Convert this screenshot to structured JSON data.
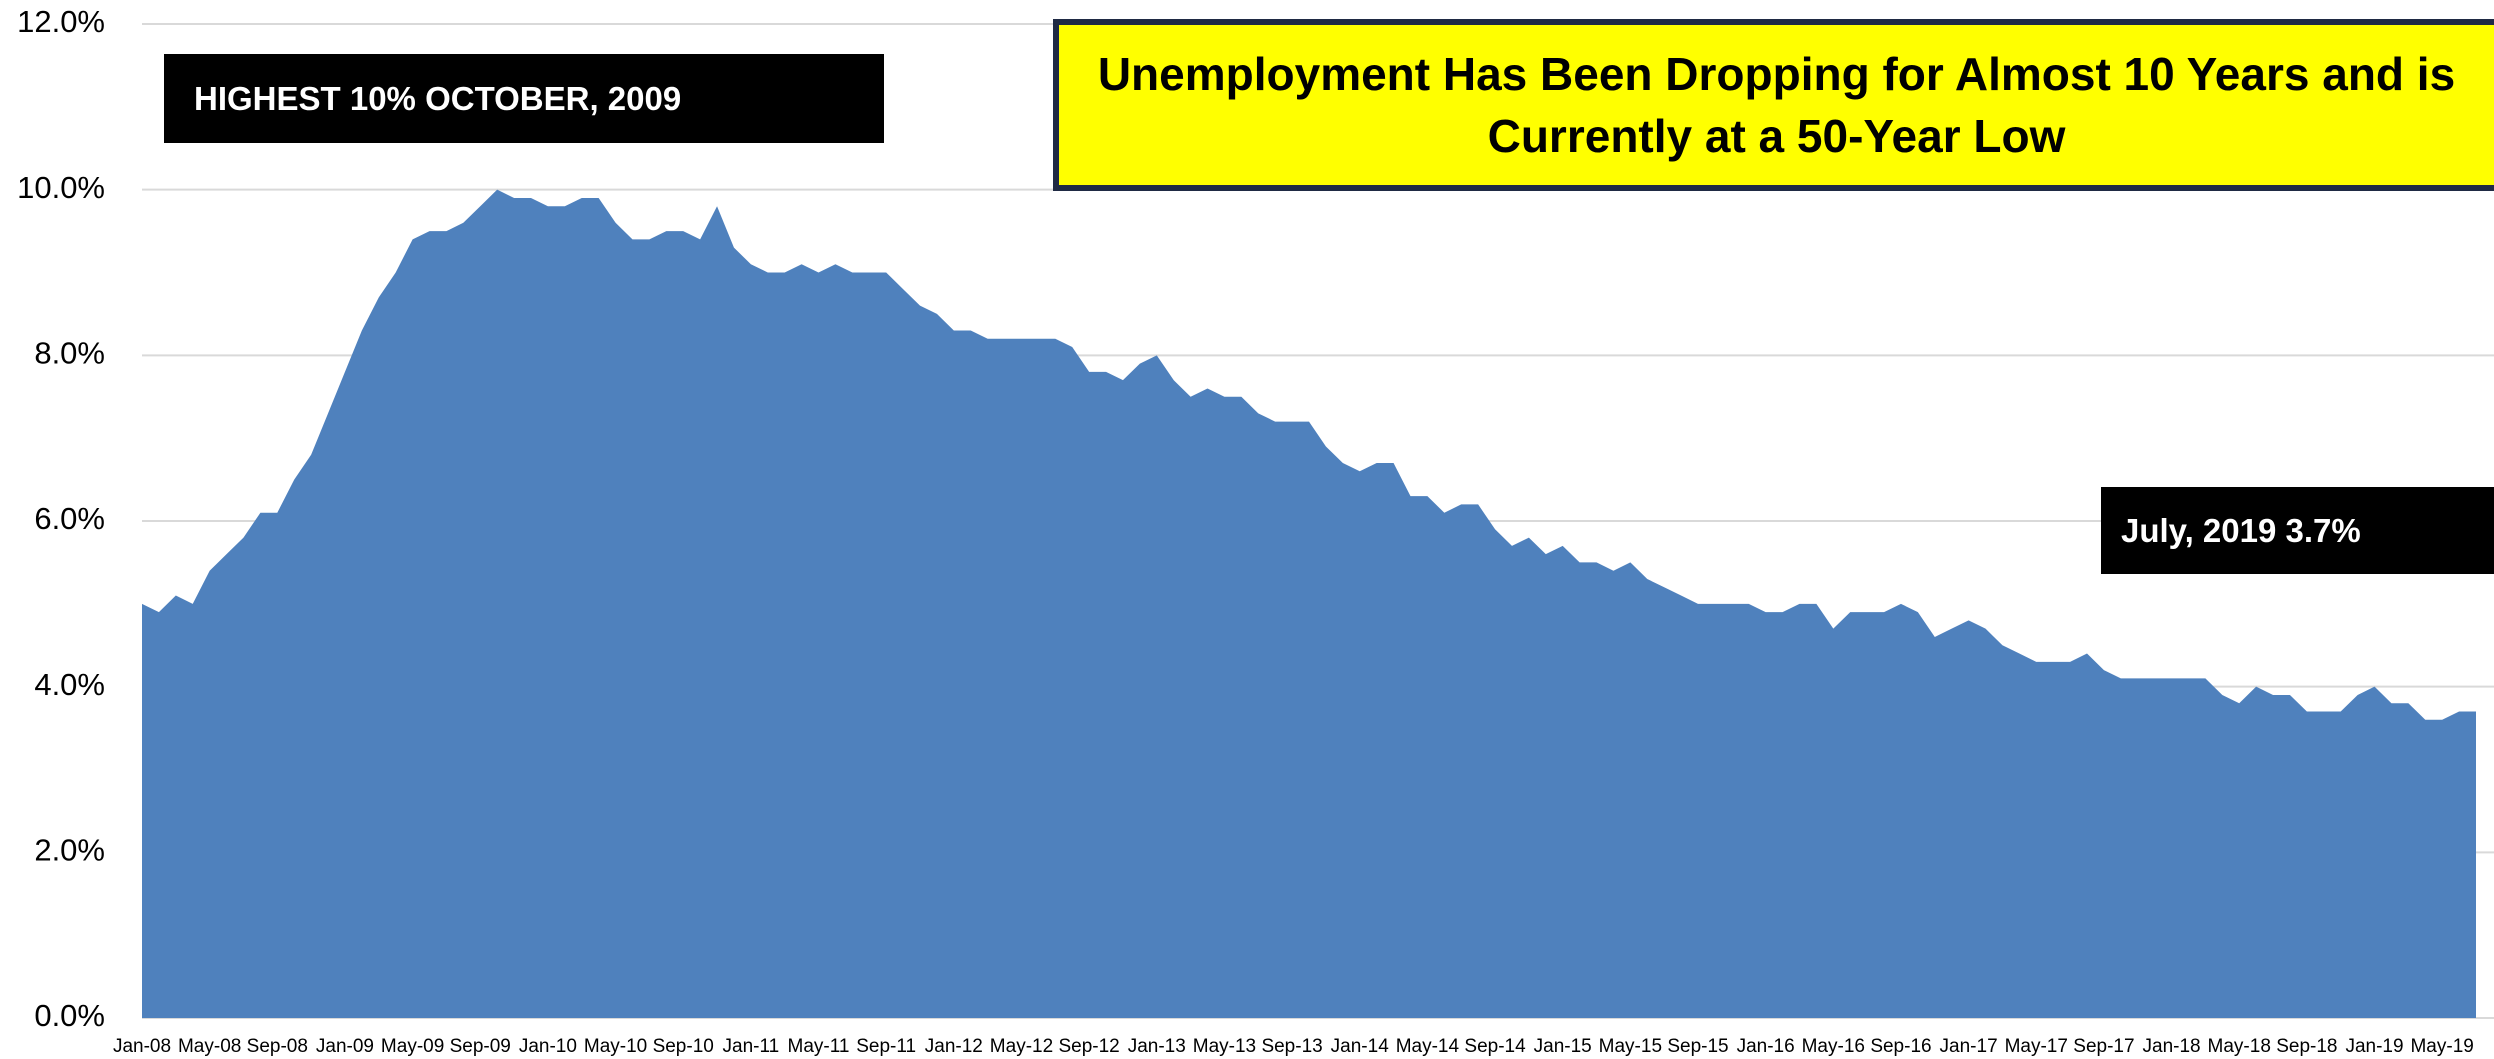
{
  "chart_data": {
    "type": "area",
    "title": "Unemployment Has Been Dropping for Almost 10 Years and is Currently at a 50-Year Low",
    "annotations": [
      "HIGHEST 10% OCTOBER, 2009",
      "July, 2019 3.7%"
    ],
    "color": "#4f81bd",
    "grid": true,
    "ylim": [
      0,
      12
    ],
    "yticks": [
      {
        "value": 0,
        "label": "0.0%"
      },
      {
        "value": 2,
        "label": "2.0%"
      },
      {
        "value": 4,
        "label": "4.0%"
      },
      {
        "value": 6,
        "label": "6.0%"
      },
      {
        "value": 8,
        "label": "8.0%"
      },
      {
        "value": 10,
        "label": "10.0%"
      },
      {
        "value": 12,
        "label": "12.0%"
      }
    ],
    "categories": [
      "Jan-08",
      null,
      null,
      null,
      "May-08",
      null,
      null,
      null,
      "Sep-08",
      null,
      null,
      null,
      "Jan-09",
      null,
      null,
      null,
      "May-09",
      null,
      null,
      null,
      "Sep-09",
      null,
      null,
      null,
      "Jan-10",
      null,
      null,
      null,
      "May-10",
      null,
      null,
      null,
      "Sep-10",
      null,
      null,
      null,
      "Jan-11",
      null,
      null,
      null,
      "May-11",
      null,
      null,
      null,
      "Sep-11",
      null,
      null,
      null,
      "Jan-12",
      null,
      null,
      null,
      "May-12",
      null,
      null,
      null,
      "Sep-12",
      null,
      null,
      null,
      "Jan-13",
      null,
      null,
      null,
      "May-13",
      null,
      null,
      null,
      "Sep-13",
      null,
      null,
      null,
      "Jan-14",
      null,
      null,
      null,
      "May-14",
      null,
      null,
      null,
      "Sep-14",
      null,
      null,
      null,
      "Jan-15",
      null,
      null,
      null,
      "May-15",
      null,
      null,
      null,
      "Sep-15",
      null,
      null,
      null,
      "Jan-16",
      null,
      null,
      null,
      "May-16",
      null,
      null,
      null,
      "Sep-16",
      null,
      null,
      null,
      "Jan-17",
      null,
      null,
      null,
      "May-17",
      null,
      null,
      null,
      "Sep-17",
      null,
      null,
      null,
      "Jan-18",
      null,
      null,
      null,
      "May-18",
      null,
      null,
      null,
      "Sep-18",
      null,
      null,
      null,
      "Jan-19",
      null,
      null,
      null,
      "May-19",
      null,
      null
    ],
    "values": [
      5.0,
      4.9,
      5.1,
      5.0,
      5.4,
      5.6,
      5.8,
      6.1,
      6.1,
      6.5,
      6.8,
      7.3,
      7.8,
      8.3,
      8.7,
      9.0,
      9.4,
      9.5,
      9.5,
      9.6,
      9.8,
      10.0,
      9.9,
      9.9,
      9.8,
      9.8,
      9.9,
      9.9,
      9.6,
      9.4,
      9.4,
      9.5,
      9.5,
      9.4,
      9.8,
      9.3,
      9.1,
      9.0,
      9.0,
      9.1,
      9.0,
      9.1,
      9.0,
      9.0,
      9.0,
      8.8,
      8.6,
      8.5,
      8.3,
      8.3,
      8.2,
      8.2,
      8.2,
      8.2,
      8.2,
      8.1,
      7.8,
      7.8,
      7.7,
      7.9,
      8.0,
      7.7,
      7.5,
      7.6,
      7.5,
      7.5,
      7.3,
      7.2,
      7.2,
      7.2,
      6.9,
      6.7,
      6.6,
      6.7,
      6.7,
      6.3,
      6.3,
      6.1,
      6.2,
      6.2,
      5.9,
      5.7,
      5.8,
      5.6,
      5.7,
      5.5,
      5.5,
      5.4,
      5.5,
      5.3,
      5.2,
      5.1,
      5.0,
      5.0,
      5.0,
      5.0,
      4.9,
      4.9,
      5.0,
      5.0,
      4.7,
      4.9,
      4.9,
      4.9,
      5.0,
      4.9,
      4.6,
      4.7,
      4.8,
      4.7,
      4.5,
      4.4,
      4.3,
      4.3,
      4.3,
      4.4,
      4.2,
      4.1,
      4.1,
      4.1,
      4.1,
      4.1,
      4.1,
      3.9,
      3.8,
      4.0,
      3.9,
      3.9,
      3.7,
      3.7,
      3.7,
      3.9,
      4.0,
      3.8,
      3.8,
      3.6,
      3.6,
      3.7,
      3.7
    ]
  }
}
